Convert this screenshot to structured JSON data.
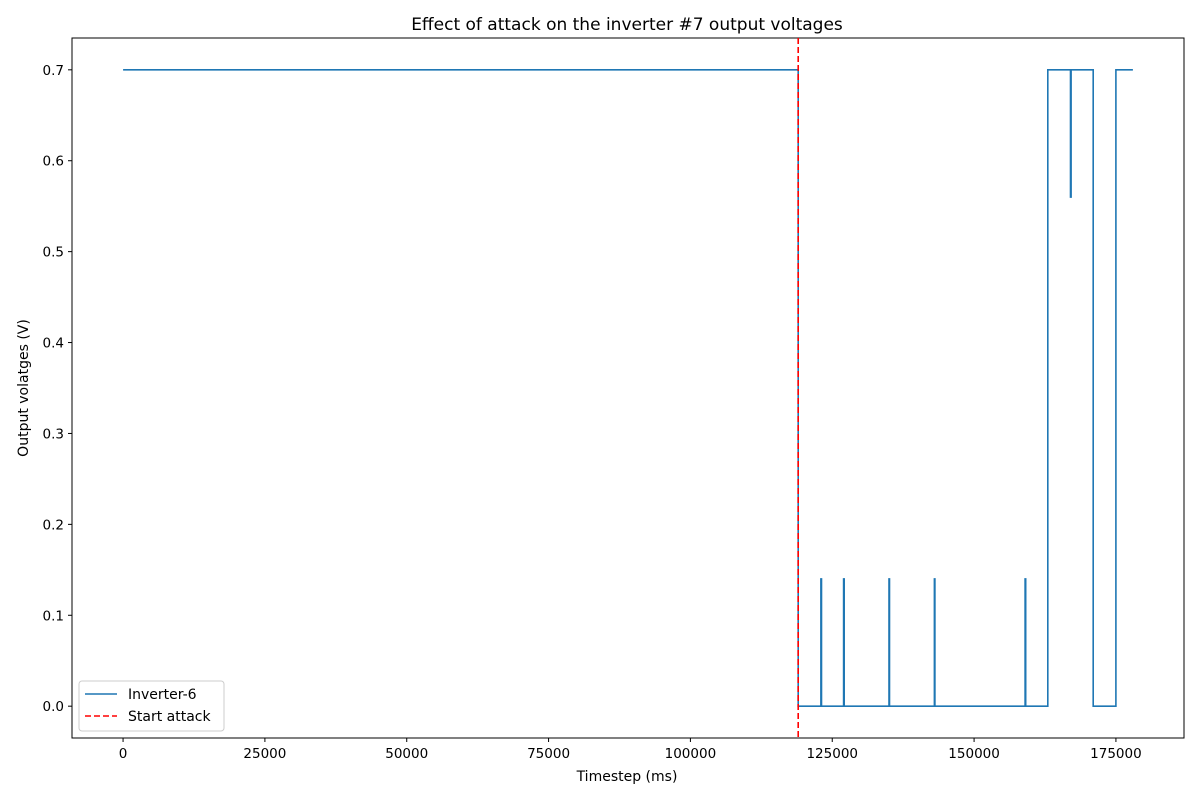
{
  "chart_data": {
    "type": "line",
    "title": "Effect of attack on the inverter #7 output voltages",
    "xlabel": "Timestep (ms)",
    "ylabel": "Output volatges (V)",
    "xlim": [
      -9000,
      187000
    ],
    "ylim": [
      -0.035,
      0.735
    ],
    "xticks": [
      0,
      25000,
      50000,
      75000,
      100000,
      125000,
      150000,
      175000
    ],
    "xtick_labels": [
      "0",
      "25000",
      "50000",
      "75000",
      "100000",
      "125000",
      "150000",
      "175000"
    ],
    "yticks": [
      0.0,
      0.1,
      0.2,
      0.3,
      0.4,
      0.5,
      0.6,
      0.7
    ],
    "ytick_labels": [
      "0.0",
      "0.1",
      "0.2",
      "0.3",
      "0.4",
      "0.5",
      "0.6",
      "0.7"
    ],
    "grid": false,
    "legend_position": "lower-left",
    "series": [
      {
        "name": "Inverter-6",
        "color": "#1f77b4",
        "style": "step",
        "x": [
          0,
          119000,
          119000,
          123000,
          123000,
          123100,
          123100,
          127000,
          127000,
          127100,
          127100,
          135000,
          135000,
          135100,
          135100,
          143000,
          143000,
          143100,
          143100,
          159000,
          159000,
          159100,
          159100,
          163000,
          163000,
          167000,
          167000,
          167100,
          167100,
          171000,
          171000,
          175000,
          175000,
          178000
        ],
        "y": [
          0.7,
          0.7,
          0.0,
          0.0,
          0.14,
          0.14,
          0.0,
          0.0,
          0.14,
          0.14,
          0.0,
          0.0,
          0.14,
          0.14,
          0.0,
          0.0,
          0.14,
          0.14,
          0.0,
          0.0,
          0.14,
          0.14,
          0.0,
          0.0,
          0.7,
          0.7,
          0.56,
          0.56,
          0.7,
          0.7,
          0.0,
          0.0,
          0.7,
          0.7
        ]
      }
    ],
    "vlines": [
      {
        "name": "Start attack",
        "x": 119000,
        "color": "#ff0000",
        "style": "dashed"
      }
    ]
  }
}
